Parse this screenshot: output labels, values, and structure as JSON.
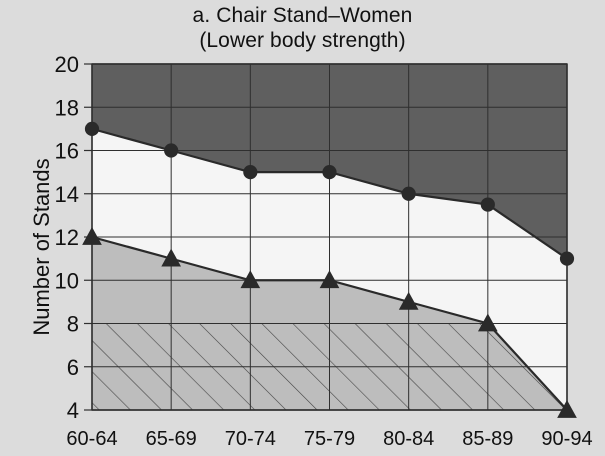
{
  "chart_data": {
    "type": "area",
    "title": "a. Chair Stand–Women",
    "subtitle": "(Lower body strength)",
    "xlabel": "",
    "ylabel": "Number of Stands",
    "categories": [
      "60-64",
      "65-69",
      "70-74",
      "75-79",
      "80-84",
      "85-89",
      "90-94"
    ],
    "yticks": [
      4,
      6,
      8,
      10,
      12,
      14,
      16,
      18,
      20
    ],
    "ylim": [
      4,
      20
    ],
    "grid": true,
    "series": [
      {
        "values": [
          17,
          16,
          15,
          15,
          14,
          13.5,
          11
        ],
        "marker": "circle"
      },
      {
        "values": [
          12,
          11,
          10,
          10,
          9,
          8,
          4
        ],
        "marker": "triangle"
      }
    ],
    "reference_line": 8,
    "colors": {
      "background": "#dcdcdc",
      "top_region": "#5f5f5f",
      "middle_region": "#f5f5f5",
      "lower_region": "#bdbdbd",
      "hatch": "#444444",
      "grid": "#2f2f2f",
      "marker": "#2a2a2a"
    }
  }
}
